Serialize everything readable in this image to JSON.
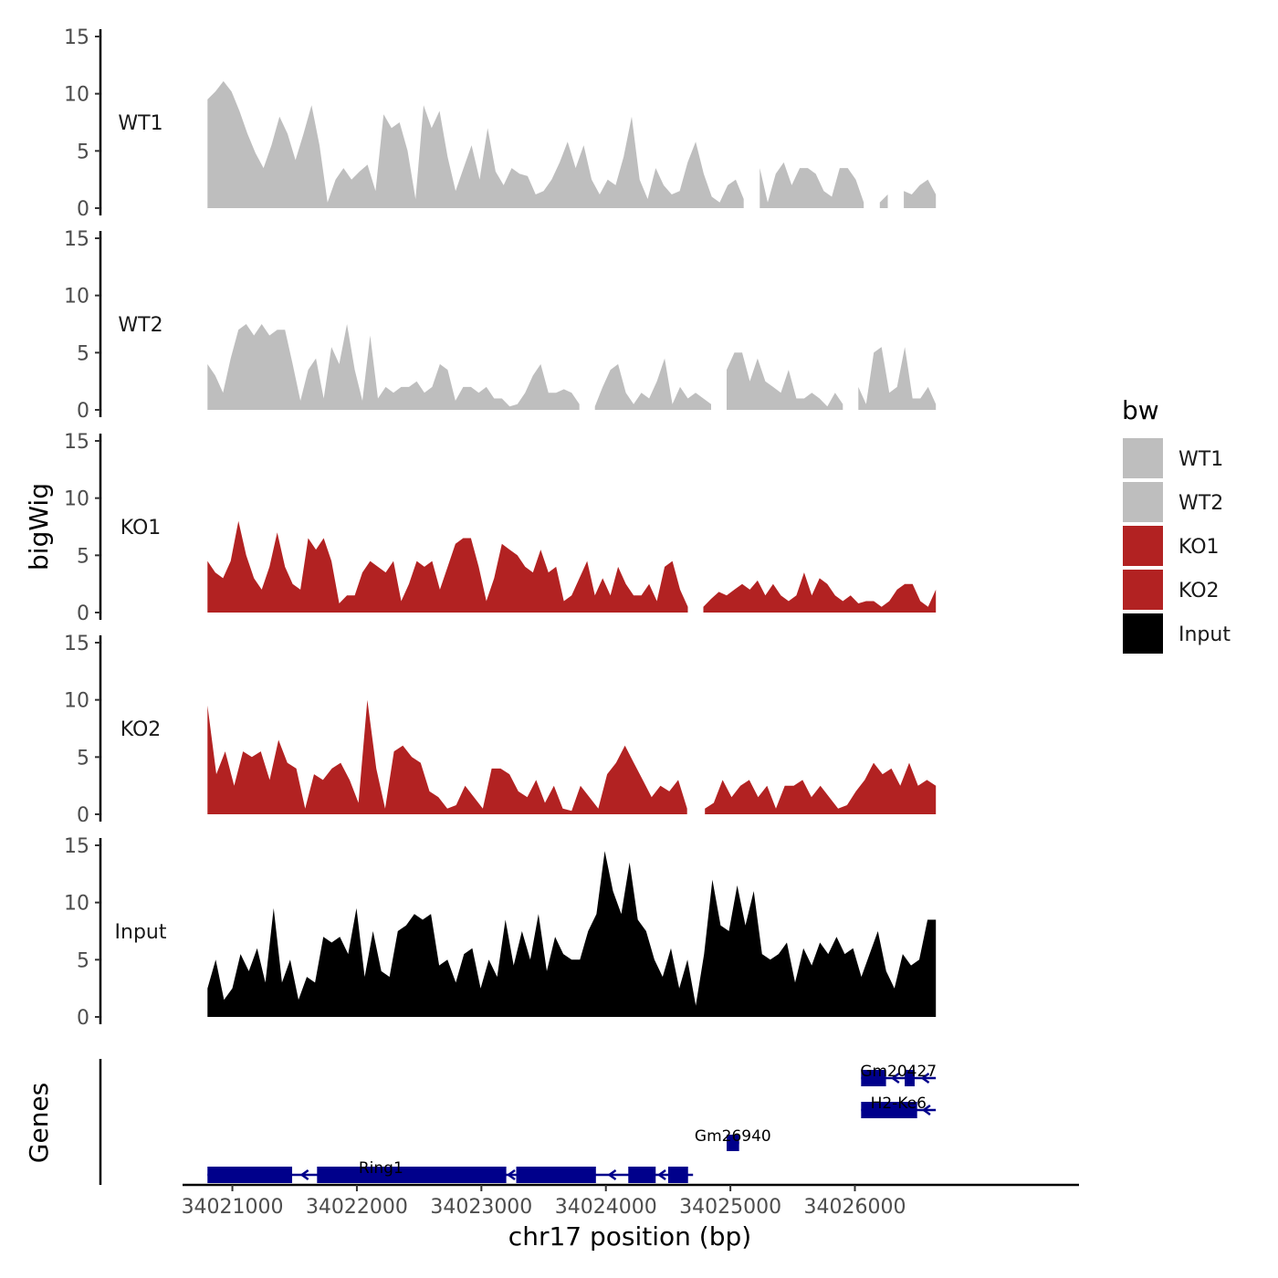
{
  "chart_data": {
    "type": "area",
    "ylabel": "bigWig",
    "xlabel": "chr17 position (bp)",
    "genes_label": "Genes",
    "xlim": [
      34020600,
      34027800
    ],
    "data_xrange": [
      34020800,
      34026650
    ],
    "ylim": [
      0,
      15
    ],
    "yticks": [
      0,
      5,
      10,
      15
    ],
    "xticks": [
      34021000,
      34022000,
      34023000,
      34024000,
      34025000,
      34026000
    ],
    "legend": {
      "title": "bw",
      "entries": [
        {
          "name": "WT1",
          "color": "#bebebe"
        },
        {
          "name": "WT2",
          "color": "#bebebe"
        },
        {
          "name": "KO1",
          "color": "#b22222"
        },
        {
          "name": "KO2",
          "color": "#b22222"
        },
        {
          "name": "Input",
          "color": "#000000"
        }
      ]
    },
    "series": [
      {
        "name": "WT1",
        "color": "#bebebe",
        "values": [
          9.5,
          10.2,
          11.1,
          10.2,
          8.5,
          6.5,
          4.8,
          3.5,
          5.5,
          8.0,
          6.5,
          4.2,
          6.5,
          9.0,
          5.5,
          0.5,
          2.5,
          3.5,
          2.5,
          3.2,
          3.8,
          1.5,
          8.2,
          7.0,
          7.5,
          5.0,
          0.8,
          9.0,
          7.0,
          8.5,
          4.5,
          1.5,
          3.5,
          5.5,
          2.5,
          7.0,
          3.2,
          2.0,
          3.5,
          3.0,
          2.8,
          1.2,
          1.5,
          2.5,
          4.0,
          5.8,
          3.5,
          5.5,
          2.5,
          1.2,
          2.5,
          2.0,
          4.5,
          8.0,
          2.5,
          0.8,
          3.5,
          2.0,
          1.2,
          1.5,
          4.0,
          5.8,
          3.0,
          1.0,
          0.5,
          2.0,
          2.5,
          0.8,
          null,
          3.5,
          0.5,
          3.0,
          4.0,
          2.0,
          3.5,
          3.5,
          3.0,
          1.5,
          1.0,
          3.5,
          3.5,
          2.5,
          0.5,
          null,
          0.5,
          1.2,
          null,
          1.5,
          1.2,
          2.0,
          2.5,
          1.2
        ]
      },
      {
        "name": "WT2",
        "color": "#bebebe",
        "values": [
          4.0,
          3.0,
          1.5,
          4.5,
          7.0,
          7.5,
          6.5,
          7.5,
          6.5,
          7.0,
          7.0,
          4.0,
          0.8,
          3.5,
          4.5,
          1.0,
          5.5,
          4.0,
          7.5,
          3.5,
          0.8,
          6.5,
          1.0,
          2.0,
          1.5,
          2.0,
          2.0,
          2.5,
          1.5,
          2.0,
          4.0,
          3.5,
          0.8,
          2.0,
          2.0,
          1.5,
          2.0,
          1.0,
          1.0,
          0.3,
          0.5,
          1.5,
          3.0,
          4.0,
          1.5,
          1.5,
          1.8,
          1.5,
          0.5,
          null,
          0.3,
          2.0,
          3.5,
          4.0,
          1.5,
          0.5,
          1.5,
          1.0,
          2.5,
          4.5,
          0.5,
          2.0,
          1.0,
          1.5,
          1.0,
          0.5,
          null,
          3.5,
          5.0,
          5.0,
          2.5,
          4.5,
          2.5,
          2.0,
          1.5,
          3.5,
          1.0,
          1.0,
          1.5,
          1.0,
          0.3,
          1.5,
          0.5,
          null,
          2.0,
          0.5,
          5.0,
          5.5,
          1.5,
          2.0,
          5.5,
          1.0,
          1.0,
          2.0,
          0.5
        ]
      },
      {
        "name": "KO1",
        "color": "#b22222",
        "values": [
          4.5,
          3.5,
          3.0,
          4.5,
          8.0,
          5.0,
          3.0,
          2.0,
          4.0,
          7.0,
          4.0,
          2.5,
          2.0,
          6.5,
          5.5,
          6.5,
          4.5,
          0.8,
          1.5,
          1.5,
          3.5,
          4.5,
          4.0,
          3.5,
          4.5,
          1.0,
          2.5,
          4.5,
          4.0,
          4.5,
          2.0,
          4.0,
          6.0,
          6.5,
          6.5,
          4.0,
          1.0,
          3.0,
          6.0,
          5.5,
          5.0,
          4.0,
          3.5,
          5.5,
          3.5,
          4.0,
          1.0,
          1.5,
          3.0,
          4.5,
          1.5,
          3.0,
          1.5,
          4.0,
          2.5,
          1.5,
          1.5,
          2.5,
          1.0,
          4.0,
          4.5,
          2.0,
          0.5,
          null,
          0.5,
          1.2,
          1.8,
          1.5,
          2.0,
          2.5,
          2.0,
          2.8,
          1.5,
          2.5,
          1.5,
          1.0,
          1.5,
          3.5,
          1.5,
          3.0,
          2.5,
          1.5,
          1.0,
          1.5,
          0.8,
          1.0,
          1.0,
          0.5,
          1.0,
          2.0,
          2.5,
          2.5,
          1.0,
          0.5,
          2.0
        ]
      },
      {
        "name": "KO2",
        "color": "#b22222",
        "values": [
          9.5,
          3.5,
          5.5,
          2.5,
          5.5,
          5.0,
          5.5,
          3.0,
          6.5,
          4.5,
          4.0,
          0.5,
          3.5,
          3.0,
          4.0,
          4.5,
          3.0,
          1.0,
          10.0,
          4.0,
          0.5,
          5.5,
          6.0,
          5.0,
          4.5,
          2.0,
          1.5,
          0.5,
          0.8,
          2.5,
          1.5,
          0.5,
          4.0,
          4.0,
          3.5,
          2.0,
          1.5,
          3.0,
          1.0,
          2.5,
          0.5,
          0.3,
          2.5,
          1.5,
          0.5,
          3.5,
          4.5,
          6.0,
          4.5,
          3.0,
          1.5,
          2.5,
          2.0,
          3.0,
          0.5,
          null,
          0.5,
          1.0,
          3.0,
          1.5,
          2.5,
          3.0,
          1.5,
          2.5,
          0.5,
          2.5,
          2.5,
          3.0,
          1.5,
          2.5,
          1.5,
          0.5,
          0.8,
          2.0,
          3.0,
          4.5,
          3.5,
          4.0,
          2.5,
          4.5,
          2.5,
          3.0,
          2.5
        ]
      },
      {
        "name": "Input",
        "color": "#000000",
        "values": [
          2.5,
          5.0,
          1.5,
          2.5,
          5.5,
          4.0,
          6.0,
          3.0,
          9.5,
          3.0,
          5.0,
          1.5,
          3.5,
          3.0,
          7.0,
          6.5,
          7.0,
          5.5,
          9.5,
          3.5,
          7.5,
          4.0,
          3.5,
          7.5,
          8.0,
          9.0,
          8.5,
          9.0,
          4.5,
          5.0,
          3.0,
          5.5,
          6.0,
          2.5,
          5.0,
          3.5,
          8.5,
          4.5,
          7.5,
          5.0,
          9.0,
          4.0,
          7.0,
          5.5,
          5.0,
          5.0,
          7.5,
          9.0,
          14.5,
          11.0,
          9.0,
          13.5,
          8.5,
          7.5,
          5.0,
          3.5,
          6.0,
          2.5,
          5.0,
          1.0,
          5.5,
          12.0,
          8.0,
          7.5,
          11.5,
          8.0,
          11.0,
          5.5,
          5.0,
          5.5,
          6.5,
          3.0,
          6.0,
          4.5,
          6.5,
          5.5,
          7.0,
          5.5,
          6.0,
          3.5,
          5.5,
          7.5,
          4.0,
          2.5,
          5.5,
          4.5,
          5.0,
          8.5,
          8.5
        ]
      }
    ],
    "genes": [
      {
        "name": "Gm20427",
        "row": 0,
        "start": 34026050,
        "end": 34026650,
        "exons": [
          [
            34026050,
            34026250
          ],
          [
            34026400,
            34026480
          ]
        ]
      },
      {
        "name": "H2-Ke6",
        "row": 1,
        "start": 34026050,
        "end": 34026650,
        "exons": [
          [
            34026050,
            34026500
          ]
        ]
      },
      {
        "name": "Gm26940",
        "row": 2,
        "start": 34024970,
        "end": 34025070,
        "exons": [
          [
            34024970,
            34025070
          ]
        ]
      },
      {
        "name": "Ring1",
        "row": 3,
        "start": 34020800,
        "end": 34024700,
        "exons": [
          [
            34020800,
            34021480
          ],
          [
            34021680,
            34023200
          ],
          [
            34023280,
            34023920
          ],
          [
            34024180,
            34024400
          ],
          [
            34024500,
            34024660
          ]
        ]
      }
    ]
  }
}
